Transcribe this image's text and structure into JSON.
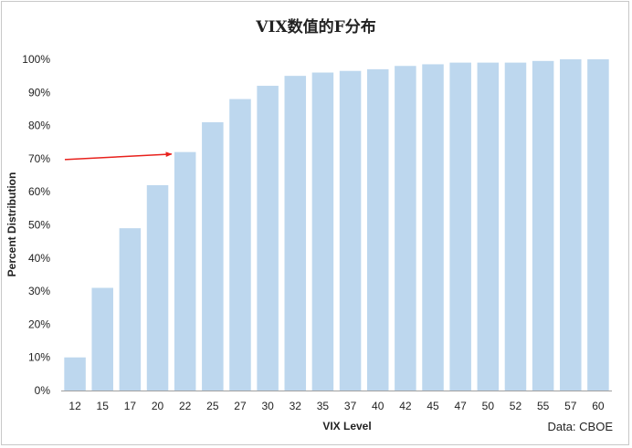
{
  "chart_data": {
    "type": "bar",
    "title": "VIX数值的F分布",
    "xlabel": "VIX Level",
    "ylabel": "Percent Distribution",
    "source": "Data: CBOE",
    "categories": [
      "12",
      "15",
      "17",
      "20",
      "22",
      "25",
      "27",
      "30",
      "32",
      "35",
      "37",
      "40",
      "42",
      "45",
      "47",
      "50",
      "52",
      "55",
      "57",
      "60"
    ],
    "values": [
      10,
      31,
      49,
      62,
      72,
      81,
      88,
      92,
      95,
      96,
      96.5,
      97,
      98,
      98.5,
      99,
      99,
      99,
      99.5,
      100,
      100
    ],
    "ylim": [
      0,
      100
    ],
    "yticks": [
      "0%",
      "10%",
      "20%",
      "30%",
      "40%",
      "50%",
      "60%",
      "70%",
      "80%",
      "90%",
      "100%"
    ],
    "grid": false,
    "legend": "none",
    "bar_color": "#bdd7ee",
    "annotation": {
      "type": "arrow",
      "at_y": 70,
      "to_category": "22",
      "color": "#e8211c"
    }
  }
}
